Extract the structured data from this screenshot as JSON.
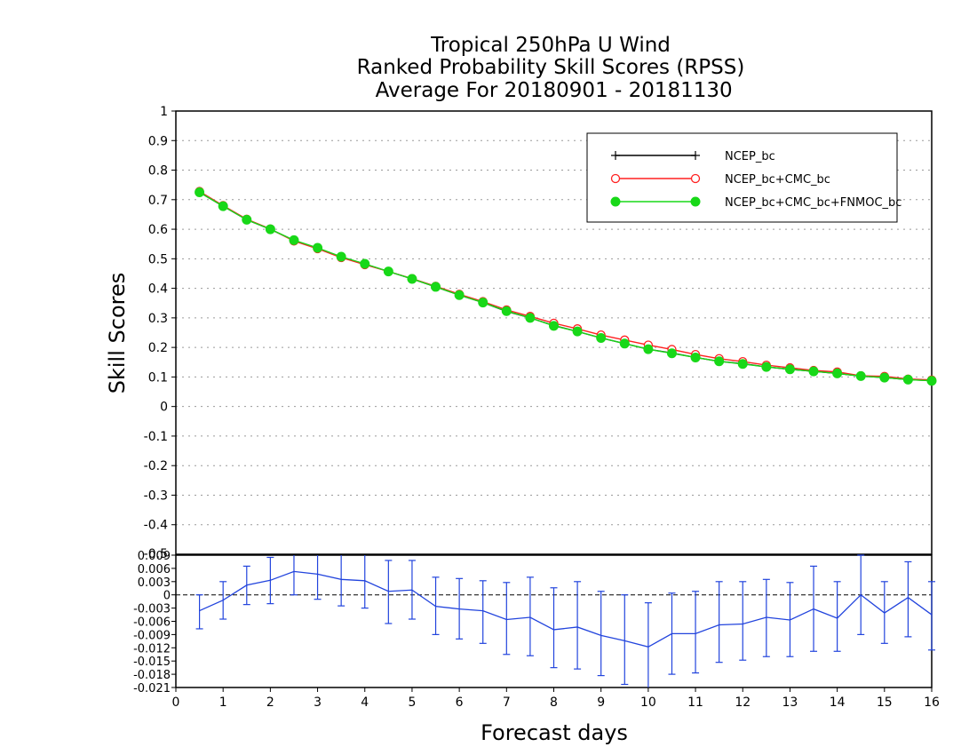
{
  "title_lines": [
    "Tropical 250hPa U Wind",
    "Ranked Probability Skill Scores (RPSS)",
    " Average For 20180901 - 20181130"
  ],
  "chart_data": [
    {
      "type": "line",
      "ylabel": "Skill Scores",
      "xlim": [
        0,
        16
      ],
      "ylim": [
        -0.5,
        1
      ],
      "yticks": [
        "1",
        "0.9",
        "0.8",
        "0.7",
        "0.6",
        "0.5",
        "0.4",
        "0.3",
        "0.2",
        "0.1",
        "0",
        "-0.1",
        "-0.2",
        "-0.3",
        "-0.4"
      ],
      "ytick_values": [
        1,
        0.9,
        0.8,
        0.7,
        0.6,
        0.5,
        0.4,
        0.3,
        0.2,
        0.1,
        0,
        -0.1,
        -0.2,
        -0.3,
        -0.4
      ],
      "grid": true,
      "legend_position": "top-right",
      "x": [
        0.5,
        1,
        1.5,
        2,
        2.5,
        3,
        3.5,
        4,
        4.5,
        5,
        5.5,
        6,
        6.5,
        7,
        7.5,
        8,
        8.5,
        9,
        9.5,
        10,
        10.5,
        11,
        11.5,
        12,
        12.5,
        13,
        13.5,
        14,
        14.5,
        15,
        15.5,
        16
      ],
      "series": [
        {
          "name": "NCEP_bc",
          "color": "#000000",
          "marker": "plus",
          "values": [
            0.725,
            0.678,
            0.632,
            0.6,
            0.562,
            0.536,
            0.506,
            0.482,
            0.457,
            0.432,
            0.405,
            0.377,
            0.352,
            0.322,
            0.3,
            0.274,
            0.254,
            0.232,
            0.213,
            0.194,
            0.181,
            0.166,
            0.153,
            0.145,
            0.134,
            0.126,
            0.119,
            0.112,
            0.103,
            0.098,
            0.091,
            0.088
          ]
        },
        {
          "name": "NCEP_bc+CMC_bc",
          "color": "#ff2020",
          "marker": "open-circle",
          "values": [
            0.728,
            0.68,
            0.634,
            0.601,
            0.56,
            0.534,
            0.504,
            0.48,
            0.457,
            0.433,
            0.407,
            0.38,
            0.355,
            0.327,
            0.305,
            0.282,
            0.263,
            0.242,
            0.225,
            0.208,
            0.193,
            0.176,
            0.162,
            0.152,
            0.14,
            0.131,
            0.122,
            0.117,
            0.104,
            0.102,
            0.093,
            0.09
          ]
        },
        {
          "name": "NCEP_bc+CMC_bc+FNMOC_bc",
          "color": "#18d818",
          "marker": "filled-circle",
          "values": [
            0.725,
            0.678,
            0.632,
            0.6,
            0.563,
            0.537,
            0.507,
            0.483,
            0.457,
            0.432,
            0.405,
            0.377,
            0.352,
            0.323,
            0.3,
            0.273,
            0.254,
            0.232,
            0.213,
            0.194,
            0.18,
            0.166,
            0.153,
            0.144,
            0.134,
            0.126,
            0.119,
            0.112,
            0.103,
            0.098,
            0.091,
            0.087
          ]
        }
      ]
    },
    {
      "type": "line",
      "xlabel": "Forecast days",
      "xlim": [
        0,
        16
      ],
      "ylim": [
        -0.021,
        0.009
      ],
      "xticks": [
        "0",
        "1",
        "2",
        "3",
        "4",
        "5",
        "6",
        "7",
        "8",
        "9",
        "10",
        "11",
        "12",
        "13",
        "14",
        "15",
        "16"
      ],
      "yticks": [
        "0.009",
        "0.006",
        "0.003",
        "0",
        "-0.003",
        "-0.006",
        "-0.009",
        "-0.012",
        "-0.015",
        "-0.018",
        "-0.021"
      ],
      "ytick_values": [
        0.009,
        0.006,
        0.003,
        0,
        -0.003,
        -0.006,
        -0.009,
        -0.012,
        -0.015,
        -0.018,
        -0.021
      ],
      "ytick_top_partial": "-0.5",
      "zero_line": "dashed",
      "x": [
        0.5,
        1,
        1.5,
        2,
        2.5,
        3,
        3.5,
        4,
        4.5,
        5,
        5.5,
        6,
        6.5,
        7,
        7.5,
        8,
        8.5,
        9,
        9.5,
        10,
        10.5,
        11,
        11.5,
        12,
        12.5,
        13,
        13.5,
        14,
        14.5,
        15,
        15.5,
        16
      ],
      "series": [
        {
          "name": "difference",
          "color": "#2244dd",
          "values": [
            -0.0036,
            -0.0012,
            0.0022,
            0.0033,
            0.0053,
            0.0047,
            0.0035,
            0.0032,
            0.0008,
            0.0011,
            -0.0026,
            -0.0032,
            -0.0036,
            -0.0056,
            -0.0051,
            -0.0079,
            -0.0073,
            -0.0092,
            -0.0104,
            -0.0118,
            -0.0088,
            -0.0088,
            -0.0068,
            -0.0066,
            -0.0051,
            -0.0057,
            -0.0032,
            -0.0053,
            0.0,
            -0.0041,
            -0.0006,
            -0.0045
          ],
          "err_low": [
            -0.0077,
            -0.0055,
            -0.0022,
            -0.002,
            0.0,
            -0.001,
            -0.0025,
            -0.003,
            -0.0065,
            -0.0055,
            -0.009,
            -0.01,
            -0.011,
            -0.0135,
            -0.0138,
            -0.0165,
            -0.0168,
            -0.0183,
            -0.0203,
            -0.0216,
            -0.018,
            -0.0177,
            -0.0153,
            -0.0148,
            -0.014,
            -0.014,
            -0.0128,
            -0.0128,
            -0.009,
            -0.011,
            -0.0095,
            -0.0125
          ],
          "err_high": [
            0.0,
            0.003,
            0.0065,
            0.0085,
            0.0105,
            0.01,
            0.0095,
            0.0095,
            0.0078,
            0.0078,
            0.004,
            0.0037,
            0.0032,
            0.0028,
            0.004,
            0.0016,
            0.003,
            0.0008,
            0.0,
            -0.0018,
            0.0004,
            0.0008,
            0.003,
            0.003,
            0.0035,
            0.0028,
            0.0065,
            0.003,
            0.009,
            0.003,
            0.0075,
            0.003
          ]
        }
      ]
    }
  ]
}
